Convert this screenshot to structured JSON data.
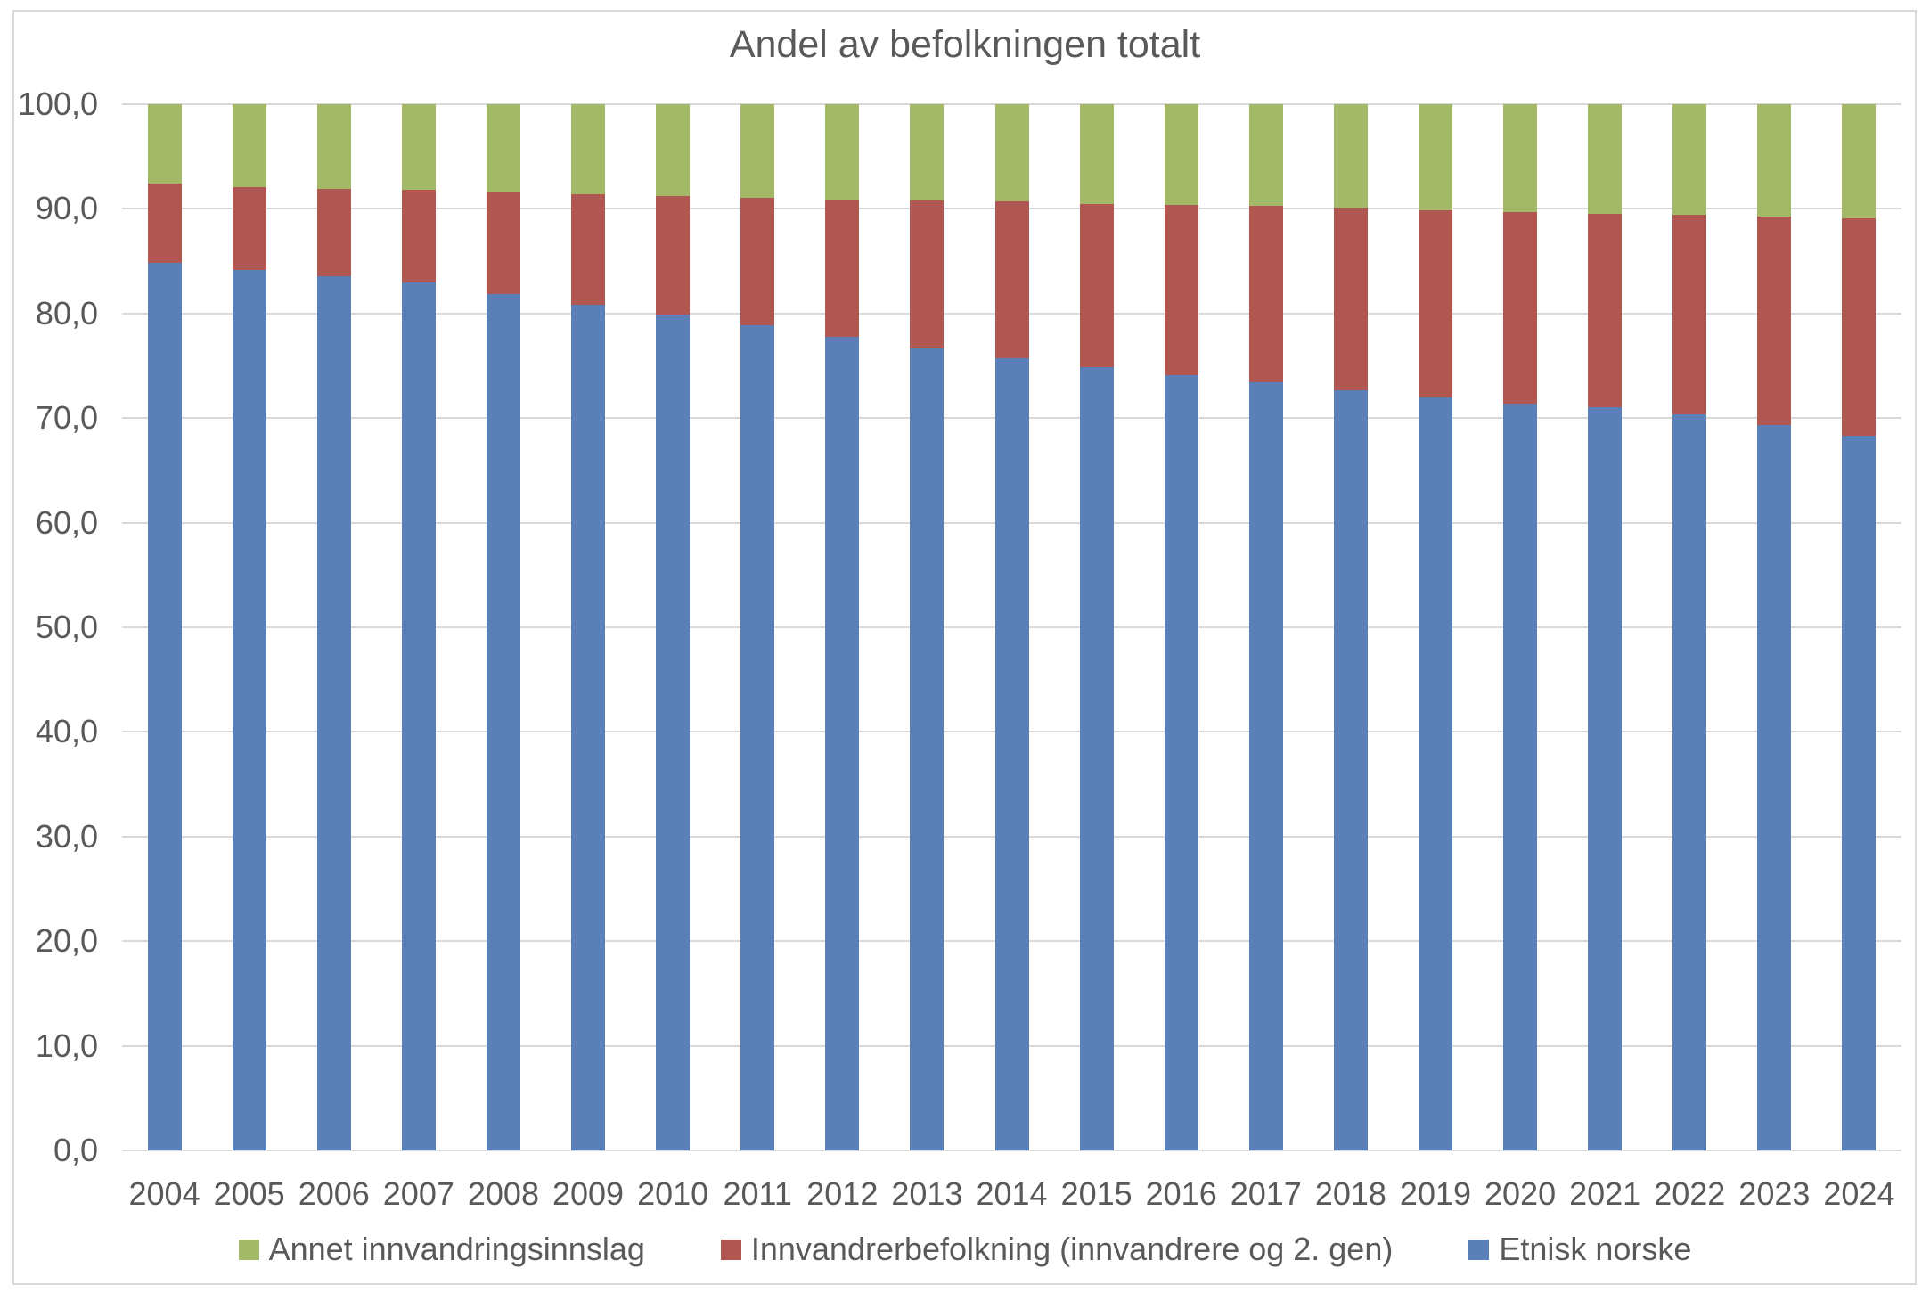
{
  "page": {
    "title": "Andel av befolkningen totalt"
  },
  "colors": {
    "etnisk_norske": "#5A80B7",
    "innvandrerbefolkning": "#B15752",
    "annet_innvandringsinnslag": "#A4B967",
    "gridline": "#D9D9D9",
    "frame_border": "#D9D9D9",
    "text": "#595959"
  },
  "y_axis": {
    "tick_labels": [
      "100,0",
      "90,0",
      "80,0",
      "70,0",
      "60,0",
      "50,0",
      "40,0",
      "30,0",
      "20,0",
      "10,0",
      "0,0"
    ]
  },
  "x_axis": {
    "tick_labels": [
      "2004",
      "2005",
      "2006",
      "2007",
      "2008",
      "2009",
      "2010",
      "2011",
      "2012",
      "2013",
      "2014",
      "2015",
      "2016",
      "2017",
      "2018",
      "2019",
      "2020",
      "2021",
      "2022",
      "2023",
      "2024"
    ]
  },
  "legend": {
    "items": [
      {
        "label": "Annet innvandringsinnslag",
        "color_key": "annet_innvandringsinnslag"
      },
      {
        "label": "Innvandrerbefolkning (innvandrere og 2. gen)",
        "color_key": "innvandrerbefolkning"
      },
      {
        "label": "Etnisk norske",
        "color_key": "etnisk_norske"
      }
    ]
  },
  "chart_data": {
    "type": "bar",
    "stacked": true,
    "title": "Andel av befolkningen totalt",
    "categories": [
      "2004",
      "2005",
      "2006",
      "2007",
      "2008",
      "2009",
      "2010",
      "2011",
      "2012",
      "2013",
      "2014",
      "2015",
      "2016",
      "2017",
      "2018",
      "2019",
      "2020",
      "2021",
      "2022",
      "2023",
      "2024"
    ],
    "series": [
      {
        "name": "Etnisk norske",
        "color": "#5A80B7",
        "values": [
          84.8,
          84.2,
          83.6,
          83.0,
          81.9,
          80.8,
          79.9,
          78.9,
          77.8,
          76.7,
          75.7,
          74.9,
          74.1,
          73.4,
          72.7,
          72.0,
          71.4,
          71.0,
          70.4,
          69.3,
          68.3
        ]
      },
      {
        "name": "Innvandrerbefolkning (innvandrere og 2. gen)",
        "color": "#B15752",
        "values": [
          7.6,
          7.9,
          8.3,
          8.8,
          9.7,
          10.6,
          11.3,
          12.2,
          13.1,
          14.1,
          15.0,
          15.6,
          16.3,
          16.9,
          17.4,
          17.9,
          18.3,
          18.5,
          19.0,
          20.0,
          20.8
        ]
      },
      {
        "name": "Annet innvandringsinnslag",
        "color": "#A4B967",
        "values": [
          7.6,
          7.9,
          8.1,
          8.2,
          8.4,
          8.6,
          8.8,
          8.9,
          9.1,
          9.2,
          9.3,
          9.5,
          9.6,
          9.7,
          9.9,
          10.1,
          10.3,
          10.5,
          10.6,
          10.7,
          10.9
        ]
      }
    ],
    "ylim": [
      0,
      100
    ],
    "ytick_step": 10,
    "grid": true,
    "legend_position": "bottom",
    "decimal_separator": ","
  }
}
